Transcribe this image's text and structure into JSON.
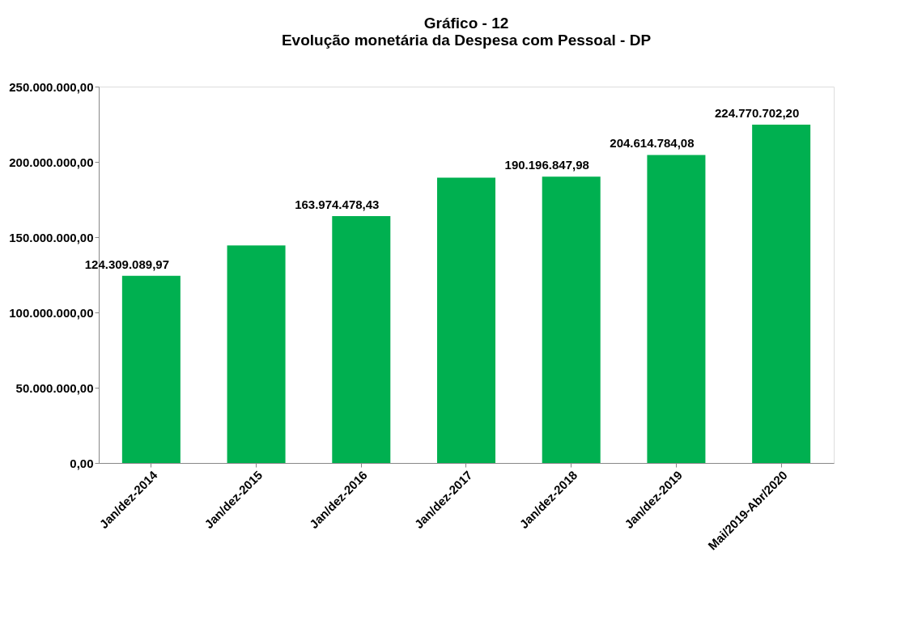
{
  "chart_data": {
    "type": "bar",
    "title": [
      "Gráfico - 12",
      "Evolução monetária da Despesa com Pessoal - DP"
    ],
    "categories": [
      "Jan/dez-2014",
      "Jan/dez-2015",
      "Jan/dez-2016",
      "Jan/dez-2017",
      "Jan/dez-2018",
      "Jan/dez-2019",
      "Mai/2019-Abr/2020"
    ],
    "values": [
      124309089.97,
      144500000,
      163974478.43,
      189500000,
      190196847.98,
      204614784.08,
      224770702.2
    ],
    "value_labels": [
      "124.309.089,97",
      null,
      "163.974.478,43",
      null,
      "190.196.847,98",
      "204.614.784,08",
      "224.770.702,20"
    ],
    "color": "#00b050",
    "ylim": [
      0,
      250000000
    ],
    "yticks": [
      {
        "value": 0,
        "label": "0,00"
      },
      {
        "value": 50000000,
        "label": "50.000.000,00"
      },
      {
        "value": 100000000,
        "label": "100.000.000,00"
      },
      {
        "value": 150000000,
        "label": "150.000.000,00"
      },
      {
        "value": 200000000,
        "label": "200.000.000,00"
      },
      {
        "value": 250000000,
        "label": "250.000.000,00"
      }
    ],
    "grid": false
  }
}
